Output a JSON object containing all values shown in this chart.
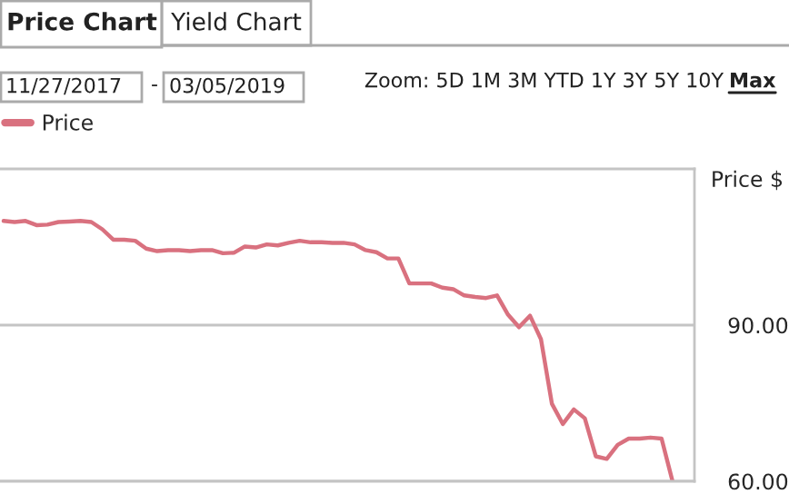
{
  "chart_data": {
    "type": "line",
    "ylabel": "Price $",
    "annotations": [
      "Price Chart",
      "Yield Chart",
      "11/27/2017",
      "-",
      "03/05/2019",
      "Zoom: 5D 1M 3M YTD 1Y 3Y 5Y 10Y",
      "Max"
    ],
    "categories": [
      null,
      null,
      null,
      null,
      null,
      null,
      null,
      null,
      null,
      null,
      null,
      null,
      null,
      null,
      null,
      null,
      null,
      null,
      null,
      null,
      null,
      null,
      null,
      null,
      null,
      null,
      null,
      null,
      null,
      null,
      null,
      null,
      null,
      null,
      null,
      null,
      null,
      null,
      null,
      null,
      null,
      null,
      null,
      null,
      null,
      null,
      null,
      null,
      null,
      null,
      null,
      null,
      null,
      null,
      null,
      null,
      null,
      null,
      null,
      null,
      null,
      null
    ],
    "series": [
      {
        "name": "Price",
        "color": "#d9717f",
        "values": [
          110.0,
          109.8,
          110.0,
          109.2,
          109.3,
          109.8,
          109.9,
          110.0,
          109.8,
          108.4,
          106.4,
          106.4,
          106.2,
          104.7,
          104.2,
          104.4,
          104.4,
          104.2,
          104.4,
          104.4,
          103.8,
          103.9,
          105.1,
          104.9,
          105.5,
          105.3,
          105.8,
          106.2,
          105.9,
          105.9,
          105.8,
          105.8,
          105.5,
          104.4,
          104.0,
          102.8,
          102.8,
          98.0,
          98.0,
          98.0,
          97.2,
          96.9,
          95.7,
          95.4,
          95.2,
          95.7,
          92.0,
          89.6,
          91.8,
          87.3,
          74.9,
          71.0,
          73.8,
          72.1,
          64.8,
          64.3,
          67.0,
          68.2,
          68.2,
          68.4,
          68.2,
          60.0
        ]
      }
    ],
    "ylim": [
      60,
      120
    ],
    "yticks": [
      {
        "value": 60,
        "label": "60.00"
      },
      {
        "value": 90,
        "label": "90.00"
      }
    ],
    "tick_labels": "y",
    "grid": "y",
    "legend": "top left",
    "line_style": "solid",
    "marker": "none"
  }
}
